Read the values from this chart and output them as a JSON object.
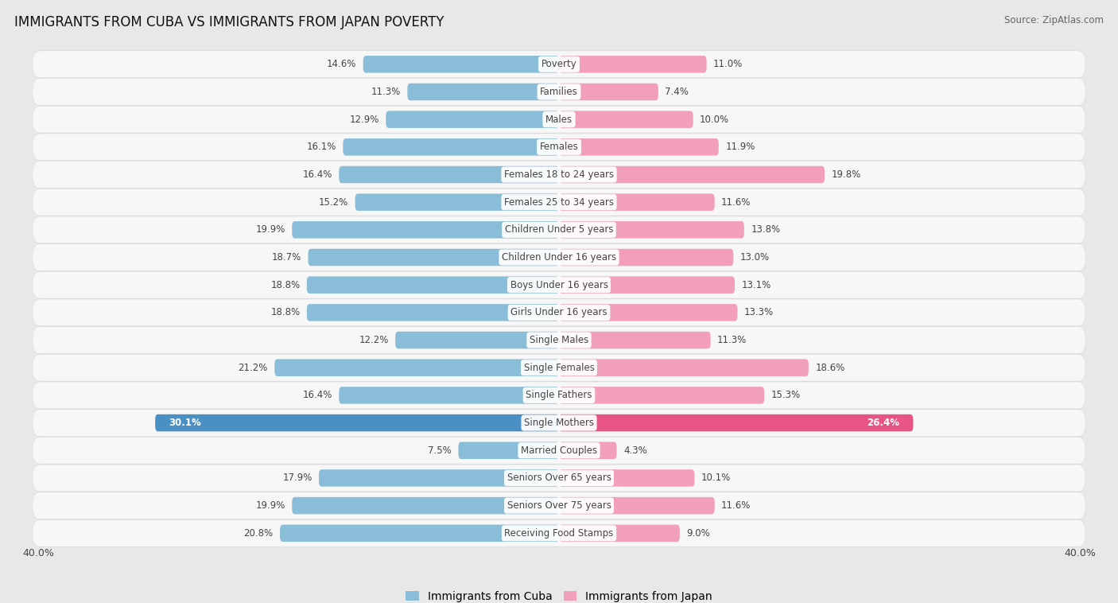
{
  "title": "IMMIGRANTS FROM CUBA VS IMMIGRANTS FROM JAPAN POVERTY",
  "source": "Source: ZipAtlas.com",
  "categories": [
    "Poverty",
    "Families",
    "Males",
    "Females",
    "Females 18 to 24 years",
    "Females 25 to 34 years",
    "Children Under 5 years",
    "Children Under 16 years",
    "Boys Under 16 years",
    "Girls Under 16 years",
    "Single Males",
    "Single Females",
    "Single Fathers",
    "Single Mothers",
    "Married Couples",
    "Seniors Over 65 years",
    "Seniors Over 75 years",
    "Receiving Food Stamps"
  ],
  "cuba_values": [
    14.6,
    11.3,
    12.9,
    16.1,
    16.4,
    15.2,
    19.9,
    18.7,
    18.8,
    18.8,
    12.2,
    21.2,
    16.4,
    30.1,
    7.5,
    17.9,
    19.9,
    20.8
  ],
  "japan_values": [
    11.0,
    7.4,
    10.0,
    11.9,
    19.8,
    11.6,
    13.8,
    13.0,
    13.1,
    13.3,
    11.3,
    18.6,
    15.3,
    26.4,
    4.3,
    10.1,
    11.6,
    9.0
  ],
  "cuba_color": "#89BDD8",
  "japan_color": "#F2A0BA",
  "cuba_highlight_color": "#4A90C4",
  "japan_highlight_color": "#E85585",
  "bg_color": "#e8e8e8",
  "row_bg_color": "#f7f7f7",
  "label_color": "#444444",
  "value_color": "#444444",
  "axis_limit": 40.0,
  "bar_height": 0.62,
  "legend_cuba": "Immigrants from Cuba",
  "legend_japan": "Immigrants from Japan"
}
